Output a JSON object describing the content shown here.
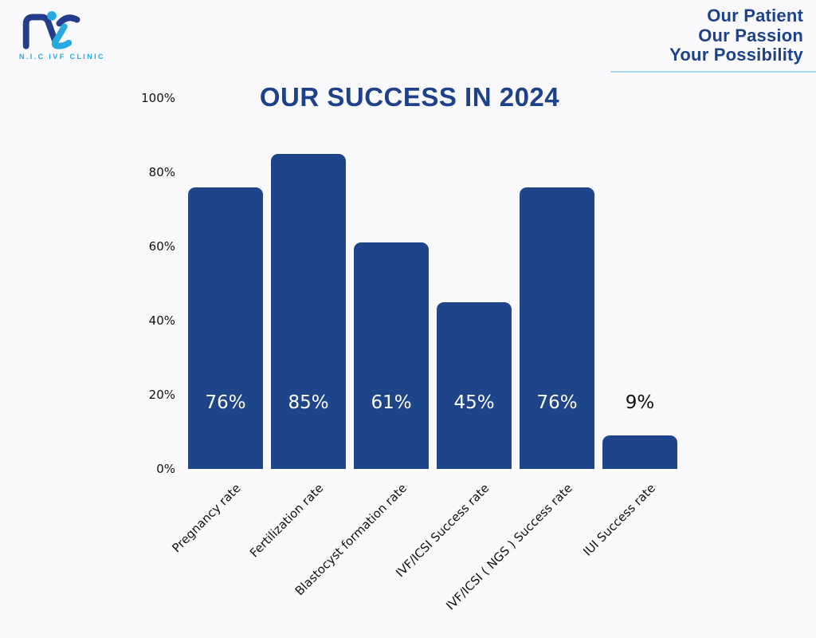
{
  "header": {
    "logo": {
      "subtitle": "N.I.C IVF CLINIC"
    },
    "tagline": {
      "line1": "Our Patient",
      "line2": "Our Passion",
      "line3": "Your Possibility"
    }
  },
  "chart_data": {
    "type": "bar",
    "title": "OUR SUCCESS IN 2024",
    "categories": [
      "Pregnancy rate",
      "Fertilization rate",
      "Blastocyst formation rate",
      "IVF/ICSI Success rate",
      "IVF/ICSI ( NGS ) Success rate",
      "IUI Success rate"
    ],
    "values": [
      76,
      85,
      61,
      45,
      76,
      9
    ],
    "value_labels": [
      "76%",
      "85%",
      "61%",
      "45%",
      "76%",
      "9%"
    ],
    "y_ticks": [
      {
        "label": "100%",
        "value": 100
      },
      {
        "label": "80%",
        "value": 80
      },
      {
        "label": "60%",
        "value": 60
      },
      {
        "label": "40%",
        "value": 40
      },
      {
        "label": "20%",
        "value": 20
      },
      {
        "label": "0%",
        "value": 0
      }
    ],
    "ylim": [
      0,
      100
    ],
    "xlabel": "",
    "ylabel": "",
    "grid": false,
    "legend": null,
    "bar_color": "#1e4489",
    "value_label_inside_color": "#ffffff",
    "value_label_outside_color": "#111111"
  },
  "colors": {
    "background": "#fafafd",
    "brand_dark_blue": "#243c8c",
    "brand_light_blue": "#29a9e0",
    "title_blue": "#1d4289",
    "underline_blue": "#a7d6ee",
    "axis_text": "#111111"
  }
}
